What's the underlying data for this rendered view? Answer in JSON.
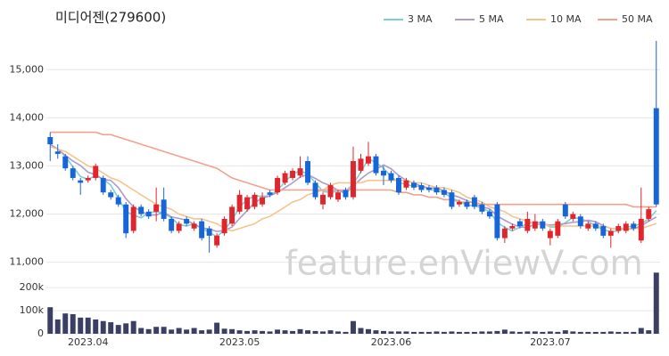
{
  "chart_data": {
    "type": "candlestick",
    "title": "미디어젠(279600)",
    "watermark": "feature.enViewV.com",
    "categories": [
      null,
      null,
      null,
      null,
      null,
      "2023.04",
      null,
      null,
      null,
      null,
      null,
      null,
      null,
      null,
      null,
      null,
      null,
      null,
      null,
      null,
      null,
      null,
      null,
      null,
      null,
      "2023.05",
      null,
      null,
      null,
      null,
      null,
      null,
      null,
      null,
      null,
      null,
      null,
      null,
      null,
      null,
      null,
      null,
      null,
      null,
      null,
      "2023.06",
      null,
      null,
      null,
      null,
      null,
      null,
      null,
      null,
      null,
      null,
      null,
      null,
      null,
      null,
      null,
      null,
      null,
      null,
      null,
      null,
      "2023.07",
      null,
      null,
      null,
      null,
      null,
      null,
      null,
      null,
      null,
      null,
      null,
      null,
      null,
      null
    ],
    "open": [
      13600,
      13300,
      13200,
      12950,
      12700,
      12700,
      12750,
      12750,
      12450,
      12350,
      12200,
      11650,
      12150,
      12050,
      12050,
      12300,
      11900,
      11650,
      11900,
      11700,
      11850,
      11700,
      11350,
      11600,
      11800,
      12050,
      12100,
      12150,
      12200,
      12450,
      12450,
      12650,
      12750,
      12800,
      13100,
      12650,
      12200,
      12350,
      12300,
      12500,
      12350,
      12900,
      13050,
      13200,
      12900,
      12850,
      12750,
      12550,
      12650,
      12600,
      12550,
      12550,
      12500,
      12450,
      12200,
      12250,
      12350,
      12200,
      12050,
      12200,
      11500,
      11700,
      11850,
      11650,
      11700,
      11850,
      11500,
      11550,
      12200,
      11900,
      11950,
      11700,
      11800,
      11750,
      11550,
      11650,
      11650,
      11800,
      11450,
      11900,
      14200
    ],
    "high": [
      13700,
      13450,
      13250,
      13000,
      12750,
      12800,
      13050,
      12800,
      12500,
      12400,
      12250,
      12200,
      12200,
      12100,
      12550,
      12550,
      11950,
      11850,
      11950,
      11850,
      11900,
      11750,
      11600,
      11950,
      12200,
      12500,
      12400,
      12450,
      12450,
      12500,
      12800,
      12900,
      12950,
      13200,
      13200,
      12700,
      12450,
      12650,
      12500,
      12550,
      13400,
      13250,
      13500,
      13250,
      13000,
      12900,
      12800,
      12750,
      12700,
      12650,
      12600,
      12600,
      12550,
      12500,
      12300,
      12300,
      12400,
      12250,
      12100,
      12250,
      11750,
      11800,
      11900,
      12050,
      12000,
      11900,
      11700,
      11900,
      12250,
      12050,
      12000,
      11850,
      11850,
      11800,
      11700,
      11800,
      11850,
      11850,
      12550,
      12150,
      15600
    ],
    "low": [
      13100,
      13150,
      12900,
      12700,
      12400,
      12650,
      12700,
      12400,
      12300,
      12150,
      11500,
      11600,
      11950,
      11900,
      11850,
      11850,
      11600,
      11600,
      11750,
      11650,
      11450,
      11200,
      11300,
      11550,
      11750,
      12000,
      12050,
      12100,
      12150,
      12350,
      12400,
      12600,
      12700,
      12750,
      12600,
      12300,
      12100,
      12300,
      12250,
      12300,
      12300,
      12850,
      13000,
      12800,
      12600,
      12650,
      12400,
      12500,
      12500,
      12450,
      12450,
      12400,
      12350,
      12100,
      12150,
      12100,
      12100,
      12000,
      11900,
      11450,
      11400,
      11650,
      11700,
      11600,
      11650,
      11650,
      11350,
      11500,
      11900,
      11850,
      11700,
      11650,
      11650,
      11500,
      11300,
      11600,
      11600,
      11650,
      11400,
      11850,
      12150
    ],
    "close": [
      13450,
      13250,
      12950,
      12750,
      12650,
      12750,
      13000,
      12450,
      12350,
      12200,
      11600,
      12150,
      12000,
      11950,
      12200,
      11900,
      11650,
      11800,
      11800,
      11800,
      11500,
      11550,
      11550,
      11900,
      12150,
      12400,
      12350,
      12400,
      12350,
      12400,
      12750,
      12850,
      12900,
      12950,
      12650,
      12350,
      12400,
      12600,
      12450,
      12350,
      13100,
      13150,
      13200,
      12850,
      12800,
      12700,
      12450,
      12700,
      12550,
      12500,
      12500,
      12450,
      12400,
      12150,
      12250,
      12150,
      12150,
      12050,
      11950,
      11500,
      11700,
      11750,
      11750,
      11900,
      11850,
      11700,
      11650,
      11850,
      11950,
      12000,
      11750,
      11800,
      11700,
      11550,
      11650,
      11750,
      11800,
      11700,
      11900,
      12100,
      12200
    ],
    "volume": [
      115000,
      62000,
      88000,
      85000,
      70000,
      70000,
      62000,
      55000,
      50000,
      38000,
      45000,
      55000,
      25000,
      20000,
      30000,
      30000,
      18000,
      25000,
      18000,
      25000,
      15000,
      18000,
      48000,
      22000,
      20000,
      15000,
      12000,
      15000,
      12000,
      10000,
      18000,
      15000,
      12000,
      20000,
      15000,
      12000,
      10000,
      15000,
      10000,
      8000,
      55000,
      25000,
      20000,
      15000,
      12000,
      10000,
      10000,
      10000,
      8000,
      8000,
      8000,
      10000,
      8000,
      10000,
      8000,
      8000,
      8000,
      10000,
      10000,
      12000,
      18000,
      10000,
      8000,
      10000,
      10000,
      8000,
      10000,
      8000,
      15000,
      10000,
      8000,
      8000,
      8000,
      8000,
      10000,
      8000,
      8000,
      8000,
      25000,
      15000,
      265000
    ],
    "series": [
      {
        "name": "3 MA",
        "color": "#7ecfd0",
        "values": [
          13450,
          13350,
          13200,
          12980,
          12780,
          12720,
          12800,
          12730,
          12600,
          12330,
          12050,
          11980,
          11920,
          12030,
          12050,
          12020,
          11920,
          11780,
          11750,
          11800,
          11700,
          11620,
          11530,
          11670,
          11870,
          12150,
          12300,
          12380,
          12370,
          12380,
          12500,
          12670,
          12830,
          12900,
          12830,
          12650,
          12470,
          12450,
          12480,
          12470,
          12630,
          12870,
          13150,
          13070,
          12950,
          12780,
          12650,
          12620,
          12570,
          12580,
          12520,
          12480,
          12450,
          12330,
          12270,
          12180,
          12180,
          12120,
          12050,
          11830,
          11720,
          11650,
          11730,
          11800,
          11830,
          11820,
          11730,
          11730,
          11820,
          11930,
          11900,
          11850,
          11750,
          11680,
          11630,
          11650,
          11730,
          11750,
          11800,
          11900,
          12070
        ]
      },
      {
        "name": "5 MA",
        "color": "#b09ac8",
        "values": [
          13450,
          13350,
          13220,
          13100,
          13010,
          12870,
          12820,
          12720,
          12700,
          12550,
          12320,
          12150,
          12060,
          11980,
          11980,
          12040,
          11940,
          11910,
          11870,
          11790,
          11710,
          11690,
          11640,
          11660,
          11730,
          11910,
          12070,
          12240,
          12330,
          12380,
          12450,
          12550,
          12650,
          12770,
          12820,
          12740,
          12650,
          12590,
          12490,
          12430,
          12580,
          12730,
          12850,
          12930,
          13020,
          12940,
          12800,
          12700,
          12640,
          12580,
          12540,
          12540,
          12480,
          12400,
          12350,
          12280,
          12220,
          12150,
          12110,
          11960,
          11870,
          11790,
          11730,
          11720,
          11790,
          11790,
          11770,
          11790,
          11800,
          11830,
          11840,
          11870,
          11840,
          11760,
          11700,
          11690,
          11690,
          11690,
          11760,
          11850,
          11940
        ]
      },
      {
        "name": "10 MA",
        "color": "#f4c48c",
        "values": [
          13400,
          13350,
          13300,
          13200,
          13100,
          13000,
          12950,
          12850,
          12750,
          12700,
          12600,
          12500,
          12400,
          12300,
          12200,
          12150,
          12100,
          12000,
          11950,
          11900,
          11900,
          11850,
          11800,
          11700,
          11650,
          11700,
          11750,
          11800,
          11900,
          11950,
          12050,
          12150,
          12250,
          12300,
          12400,
          12450,
          12500,
          12600,
          12650,
          12650,
          12650,
          12650,
          12700,
          12700,
          12700,
          12700,
          12700,
          12700,
          12650,
          12650,
          12600,
          12550,
          12550,
          12500,
          12450,
          12350,
          12300,
          12250,
          12150,
          12100,
          12050,
          11950,
          11900,
          11850,
          11800,
          11800,
          11750,
          11750,
          11750,
          11750,
          11750,
          11750,
          11750,
          11750,
          11700,
          11700,
          11700,
          11700,
          11700,
          11750,
          11800
        ]
      },
      {
        "name": "50 MA",
        "color": "#f4a08c",
        "values": [
          13700,
          13700,
          13700,
          13700,
          13700,
          13700,
          13700,
          13650,
          13650,
          13600,
          13550,
          13500,
          13450,
          13400,
          13350,
          13300,
          13250,
          13200,
          13150,
          13100,
          13050,
          13000,
          12950,
          12850,
          12750,
          12700,
          12650,
          12600,
          12550,
          12500,
          12500,
          12500,
          12500,
          12500,
          12500,
          12500,
          12500,
          12500,
          12500,
          12500,
          12500,
          12500,
          12500,
          12500,
          12500,
          12500,
          12450,
          12450,
          12400,
          12400,
          12350,
          12350,
          12300,
          12300,
          12250,
          12250,
          12250,
          12200,
          12200,
          12200,
          12200,
          12200,
          12200,
          12200,
          12200,
          12200,
          12200,
          12200,
          12200,
          12200,
          12200,
          12200,
          12200,
          12200,
          12200,
          12200,
          12200,
          12150,
          12150,
          12150,
          12150
        ]
      }
    ],
    "up_color": "#e0262d",
    "down_color": "#1766d8",
    "volume_color": "#3b3f64",
    "ylim": [
      10900,
      15800
    ],
    "yticks": [
      {
        "value": 11000,
        "label": "11,000"
      },
      {
        "value": 12000,
        "label": "12,000"
      },
      {
        "value": 13000,
        "label": "13,000"
      },
      {
        "value": 14000,
        "label": "14,000"
      },
      {
        "value": 15000,
        "label": "15,000"
      }
    ],
    "volume_ylim": [
      0,
      270000
    ],
    "volume_yticks": [
      0,
      {
        "value": 100000,
        "label": "100k"
      },
      {
        "value": 200000,
        "label": "200k"
      }
    ],
    "grid": true
  }
}
